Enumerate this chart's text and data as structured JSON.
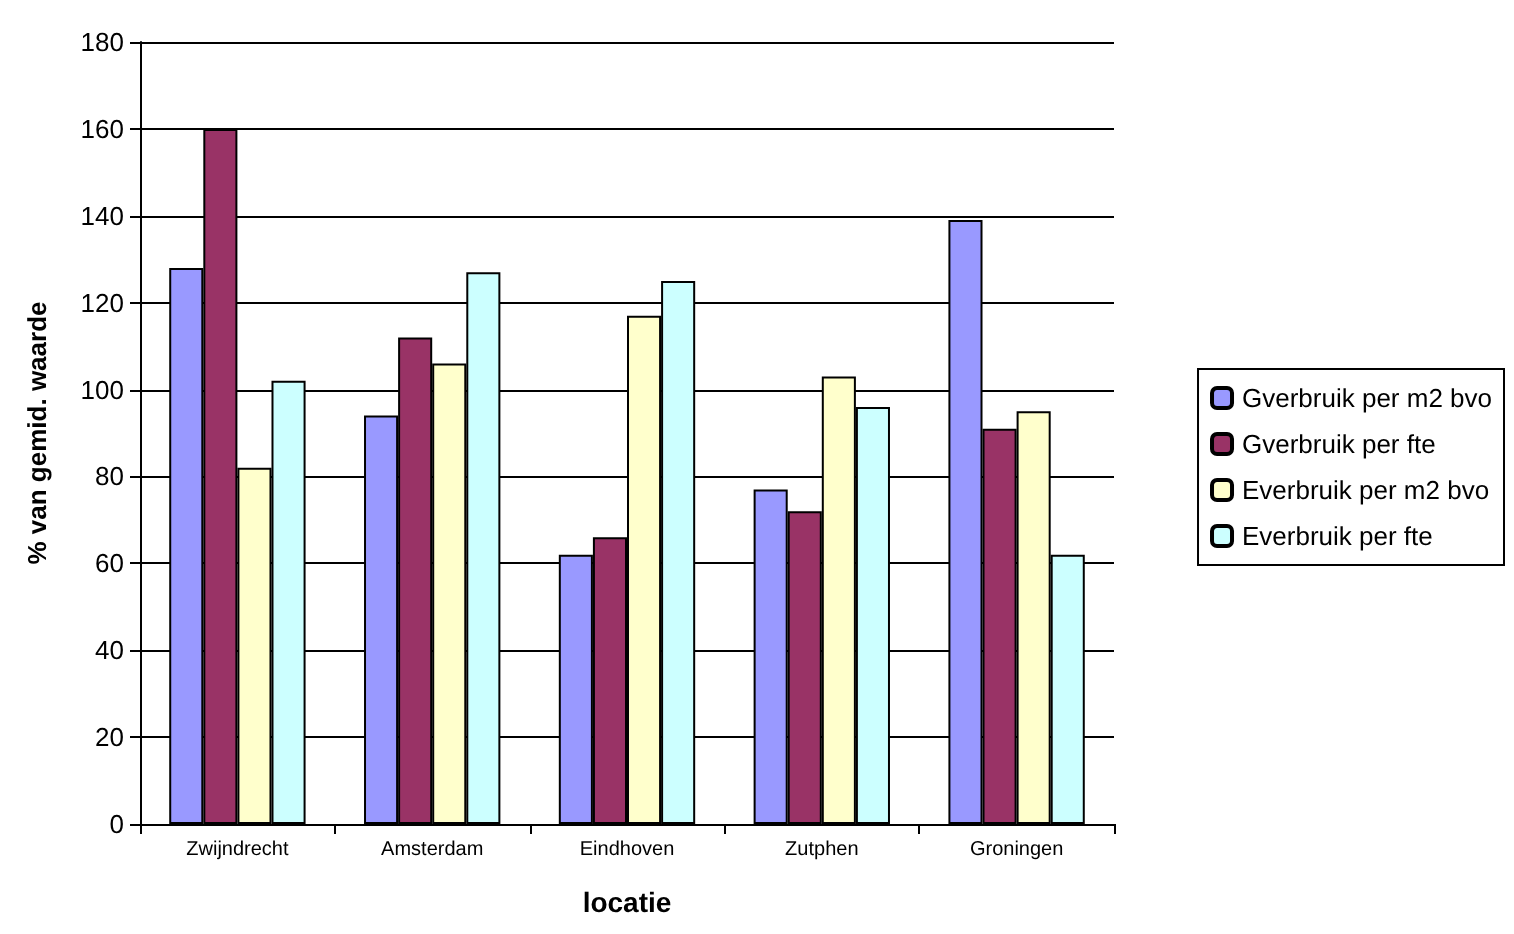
{
  "chart_data": {
    "type": "bar",
    "xlabel": "locatie",
    "ylabel": "% van gemid. waarde",
    "categories": [
      "Zwijndrecht",
      "Amsterdam",
      "Eindhoven",
      "Zutphen",
      "Groningen"
    ],
    "series": [
      {
        "name": "Gverbruik per m2 bvo",
        "color": "#9999ff",
        "values": [
          128,
          94,
          62,
          77,
          139
        ]
      },
      {
        "name": "Gverbruik per fte",
        "color": "#993366",
        "values": [
          160,
          112,
          66,
          72,
          91
        ]
      },
      {
        "name": "Everbruik per m2 bvo",
        "color": "#ffffcc",
        "values": [
          82,
          106,
          117,
          103,
          95
        ]
      },
      {
        "name": "Everbruik per fte",
        "color": "#ccffff",
        "values": [
          102,
          127,
          125,
          96,
          62
        ]
      }
    ],
    "ylim": [
      0,
      180
    ],
    "yticks": [
      0,
      20,
      40,
      60,
      80,
      100,
      120,
      140,
      160,
      180
    ],
    "grid": "y",
    "legend": "right"
  }
}
